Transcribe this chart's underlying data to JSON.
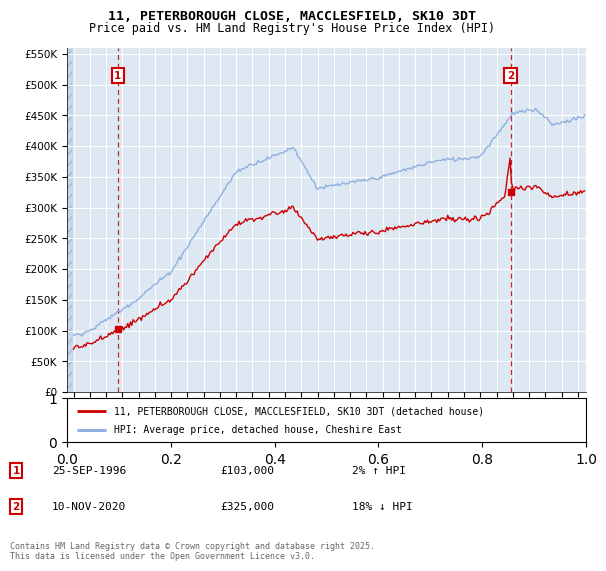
{
  "title1": "11, PETERBOROUGH CLOSE, MACCLESFIELD, SK10 3DT",
  "title2": "Price paid vs. HM Land Registry's House Price Index (HPI)",
  "legend_line1": "11, PETERBOROUGH CLOSE, MACCLESFIELD, SK10 3DT (detached house)",
  "legend_line2": "HPI: Average price, detached house, Cheshire East",
  "annotation1_label": "1",
  "annotation1_date": "25-SEP-1996",
  "annotation1_price": "£103,000",
  "annotation1_hpi": "2% ↑ HPI",
  "annotation1_year": 1996.73,
  "annotation1_value": 103000,
  "annotation2_label": "2",
  "annotation2_date": "10-NOV-2020",
  "annotation2_price": "£325,000",
  "annotation2_hpi": "18% ↓ HPI",
  "annotation2_year": 2020.86,
  "annotation2_value": 325000,
  "price_color": "#cc0000",
  "hpi_color": "#88aadd",
  "marker_box_color": "#cc0000",
  "background_color": "#dde8f3",
  "ylim_max": 560000,
  "xlim_start": 1993.6,
  "xlim_end": 2025.5,
  "copyright_text": "Contains HM Land Registry data © Crown copyright and database right 2025.\nThis data is licensed under the Open Government Licence v3.0."
}
